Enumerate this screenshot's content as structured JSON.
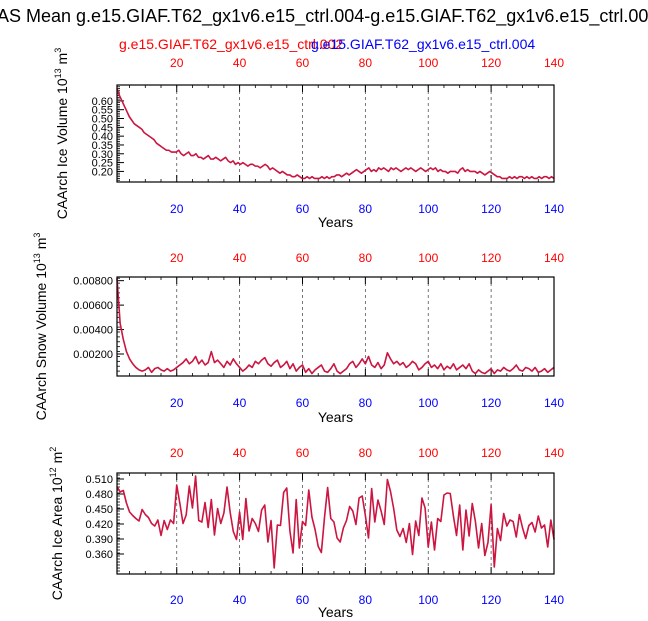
{
  "title": "AS Mean g.e15.GIAF.T62_gx1v6.e15_ctrl.004-g.e15.GIAF.T62_gx1v6.e15_ctrl.00",
  "legend": [
    {
      "label": "g.e15.GIAF.T62_gx1v6.e15_ctrl.002",
      "color": "#ff0000"
    },
    {
      "label": "g.e15.GIAF.T62_gx1v6.e15_ctrl.004",
      "color": "#0000ff"
    }
  ],
  "colors": {
    "line": "#cc1540",
    "top_ticks": "#ff0000",
    "bottom_ticks": "#0000ff",
    "grid": "#555555"
  },
  "chart_data": [
    {
      "type": "line",
      "title": "",
      "xlabel": "Years",
      "ylabel": "CAArch Ice Volume 10",
      "ylabel_exp": "13",
      "ylabel_unit": " m",
      "ylabel_unit_exp": "3",
      "xlim": [
        1,
        140
      ],
      "ylim": [
        0.14,
        0.69
      ],
      "xticks": [
        20,
        40,
        60,
        80,
        100,
        120,
        140
      ],
      "yticks": [
        0.2,
        0.25,
        0.3,
        0.35,
        0.4,
        0.45,
        0.5,
        0.55,
        0.6
      ],
      "ytick_labels": [
        "0.20",
        "0.25",
        "0.30",
        "0.35",
        "0.40",
        "0.45",
        "0.50",
        "0.55",
        "0.60"
      ],
      "gridlines_x": [
        20,
        40,
        60,
        80,
        100,
        120
      ],
      "series": [
        {
          "name": "CAArch Ice Volume",
          "values": [
            0.67,
            0.63,
            0.6,
            0.57,
            0.54,
            0.51,
            0.49,
            0.47,
            0.46,
            0.45,
            0.44,
            0.42,
            0.41,
            0.4,
            0.39,
            0.38,
            0.36,
            0.35,
            0.34,
            0.33,
            0.32,
            0.32,
            0.31,
            0.31,
            0.31,
            0.32,
            0.3,
            0.29,
            0.3,
            0.31,
            0.29,
            0.29,
            0.3,
            0.28,
            0.28,
            0.27,
            0.28,
            0.29,
            0.27,
            0.27,
            0.28,
            0.27,
            0.26,
            0.27,
            0.28,
            0.26,
            0.25,
            0.26,
            0.24,
            0.25,
            0.24,
            0.25,
            0.24,
            0.23,
            0.24,
            0.24,
            0.23,
            0.23,
            0.22,
            0.23,
            0.24,
            0.23,
            0.21,
            0.22,
            0.21,
            0.2,
            0.19,
            0.2,
            0.19,
            0.18,
            0.18,
            0.17,
            0.17,
            0.18,
            0.17,
            0.16,
            0.16,
            0.17,
            0.16,
            0.17,
            0.16,
            0.16,
            0.16,
            0.17,
            0.16,
            0.17,
            0.16,
            0.17,
            0.17,
            0.18,
            0.18,
            0.17,
            0.18,
            0.19,
            0.18,
            0.19,
            0.2,
            0.21,
            0.2,
            0.19,
            0.2,
            0.21,
            0.22,
            0.2,
            0.21,
            0.2,
            0.22,
            0.21,
            0.22,
            0.21,
            0.2,
            0.22,
            0.21,
            0.22,
            0.21,
            0.2,
            0.21,
            0.22,
            0.21,
            0.22,
            0.21,
            0.2,
            0.21,
            0.22,
            0.21,
            0.2,
            0.21,
            0.22,
            0.21,
            0.22,
            0.2,
            0.21,
            0.2,
            0.2,
            0.19,
            0.2,
            0.2,
            0.2,
            0.19,
            0.21,
            0.22,
            0.2,
            0.21,
            0.2,
            0.2,
            0.2,
            0.19,
            0.2,
            0.19,
            0.18,
            0.19,
            0.2,
            0.19,
            0.18,
            0.17,
            0.17,
            0.16,
            0.16,
            0.16,
            0.17,
            0.16,
            0.17,
            0.16,
            0.17,
            0.17,
            0.16,
            0.17,
            0.16,
            0.17,
            0.16,
            0.16,
            0.17,
            0.16,
            0.17,
            0.17,
            0.16,
            0.17,
            0.16
          ]
        }
      ]
    },
    {
      "type": "line",
      "title": "",
      "xlabel": "Years",
      "ylabel": "CAArch Snow Volume 10",
      "ylabel_exp": "13",
      "ylabel_unit": " m",
      "ylabel_unit_exp": "3",
      "xlim": [
        1,
        140
      ],
      "ylim": [
        0.0002,
        0.0083
      ],
      "xticks": [
        20,
        40,
        60,
        80,
        100,
        120,
        140
      ],
      "yticks": [
        0.002,
        0.004,
        0.006,
        0.008
      ],
      "ytick_labels": [
        "0.00200",
        "0.00400",
        "0.00600",
        "0.00800"
      ],
      "gridlines_x": [
        20,
        40,
        60,
        80,
        100,
        120
      ],
      "series": [
        {
          "name": "CAArch Snow Volume",
          "values": [
            0.0082,
            0.0045,
            0.0032,
            0.0022,
            0.0016,
            0.0012,
            0.0009,
            0.0007,
            0.0006,
            0.0007,
            0.0009,
            0.0005,
            0.0008,
            0.0009,
            0.0007,
            0.0006,
            0.0008,
            0.0006,
            0.0007,
            0.0009,
            0.0011,
            0.0013,
            0.0016,
            0.0012,
            0.0014,
            0.0018,
            0.0012,
            0.0015,
            0.0011,
            0.0013,
            0.0022,
            0.0013,
            0.0015,
            0.0012,
            0.0009,
            0.0014,
            0.0011,
            0.0016,
            0.0012,
            0.0009,
            0.0006,
            0.0008,
            0.0011,
            0.0009,
            0.0014,
            0.0012,
            0.0015,
            0.0017,
            0.0012,
            0.001,
            0.0013,
            0.0015,
            0.0009,
            0.0011,
            0.0014,
            0.0008,
            0.0012,
            0.0006,
            0.0009,
            0.0011,
            0.0005,
            0.0008,
            0.0004,
            0.0007,
            0.0009,
            0.0011,
            0.0006,
            0.0005,
            0.0008,
            0.0012,
            0.0006,
            0.0004,
            0.0006,
            0.0008,
            0.0012,
            0.0014,
            0.0009,
            0.0012,
            0.0016,
            0.0012,
            0.0018,
            0.0011,
            0.0009,
            0.0013,
            0.0008,
            0.0011,
            0.0021,
            0.0016,
            0.0012,
            0.0014,
            0.0011,
            0.0013,
            0.0009,
            0.0011,
            0.0014,
            0.0012,
            0.0007,
            0.0009,
            0.0012,
            0.0014,
            0.0009,
            0.0011,
            0.0008,
            0.0012,
            0.0007,
            0.001,
            0.0008,
            0.0012,
            0.0007,
            0.0009,
            0.0011,
            0.0008,
            0.0012,
            0.0006,
            0.0004,
            0.0007,
            0.0005,
            0.0004,
            0.0006,
            0.0008,
            0.0004,
            0.0007,
            0.0006,
            0.0009,
            0.0007,
            0.0006,
            0.0008,
            0.0011,
            0.0007,
            0.0006,
            0.0009,
            0.0008,
            0.0006,
            0.0009,
            0.0005,
            0.0006,
            0.0008,
            0.0005,
            0.0007,
            0.0009
          ]
        }
      ]
    },
    {
      "type": "line",
      "title": "",
      "xlabel": "Years",
      "ylabel": "CAArch Ice Area 10",
      "ylabel_exp": "12",
      "ylabel_unit": " m",
      "ylabel_unit_exp": "2",
      "xlim": [
        1,
        140
      ],
      "ylim": [
        0.32,
        0.522
      ],
      "xticks": [
        20,
        40,
        60,
        80,
        100,
        120,
        140
      ],
      "yticks": [
        0.36,
        0.39,
        0.42,
        0.45,
        0.48,
        0.51
      ],
      "ytick_labels": [
        "0.360",
        "0.390",
        "0.420",
        "0.450",
        "0.480",
        "0.510"
      ],
      "gridlines_x": [
        20,
        40,
        60,
        80,
        100,
        120
      ],
      "series": [
        {
          "name": "CAArch Ice Area",
          "values": [
            0.495,
            0.484,
            0.487,
            0.462,
            0.444,
            0.437,
            0.431,
            0.426,
            0.449,
            0.439,
            0.433,
            0.421,
            0.416,
            0.428,
            0.397,
            0.427,
            0.409,
            0.428,
            0.421,
            0.498,
            0.461,
            0.421,
            0.438,
            0.496,
            0.452,
            0.516,
            0.427,
            0.424,
            0.463,
            0.413,
            0.469,
            0.398,
            0.451,
            0.421,
            0.442,
            0.494,
            0.443,
            0.405,
            0.389,
            0.444,
            0.389,
            0.471,
            0.406,
            0.431,
            0.421,
            0.405,
            0.448,
            0.458,
            0.384,
            0.427,
            0.332,
            0.418,
            0.417,
            0.483,
            0.492,
            0.406,
            0.362,
            0.469,
            0.372,
            0.425,
            0.417,
            0.488,
            0.434,
            0.409,
            0.375,
            0.363,
            0.433,
            0.493,
            0.431,
            0.424,
            0.392,
            0.384,
            0.412,
            0.427,
            0.455,
            0.446,
            0.419,
            0.472,
            0.476,
            0.437,
            0.392,
            0.491,
            0.424,
            0.468,
            0.446,
            0.419,
            0.509,
            0.485,
            0.451,
            0.408,
            0.395,
            0.411,
            0.383,
            0.421,
            0.359,
            0.426,
            0.397,
            0.472,
            0.452,
            0.374,
            0.424,
            0.368,
            0.431,
            0.425,
            0.478,
            0.482,
            0.481,
            0.436,
            0.397,
            0.458,
            0.368,
            0.448,
            0.396,
            0.461,
            0.425,
            0.372,
            0.421,
            0.357,
            0.383,
            0.459,
            0.334,
            0.411,
            0.387,
            0.441,
            0.416,
            0.428,
            0.425,
            0.394,
            0.439,
            0.412,
            0.391,
            0.417,
            0.423,
            0.404,
            0.436,
            0.412,
            0.418,
            0.374,
            0.428,
            0.389
          ]
        }
      ]
    }
  ]
}
